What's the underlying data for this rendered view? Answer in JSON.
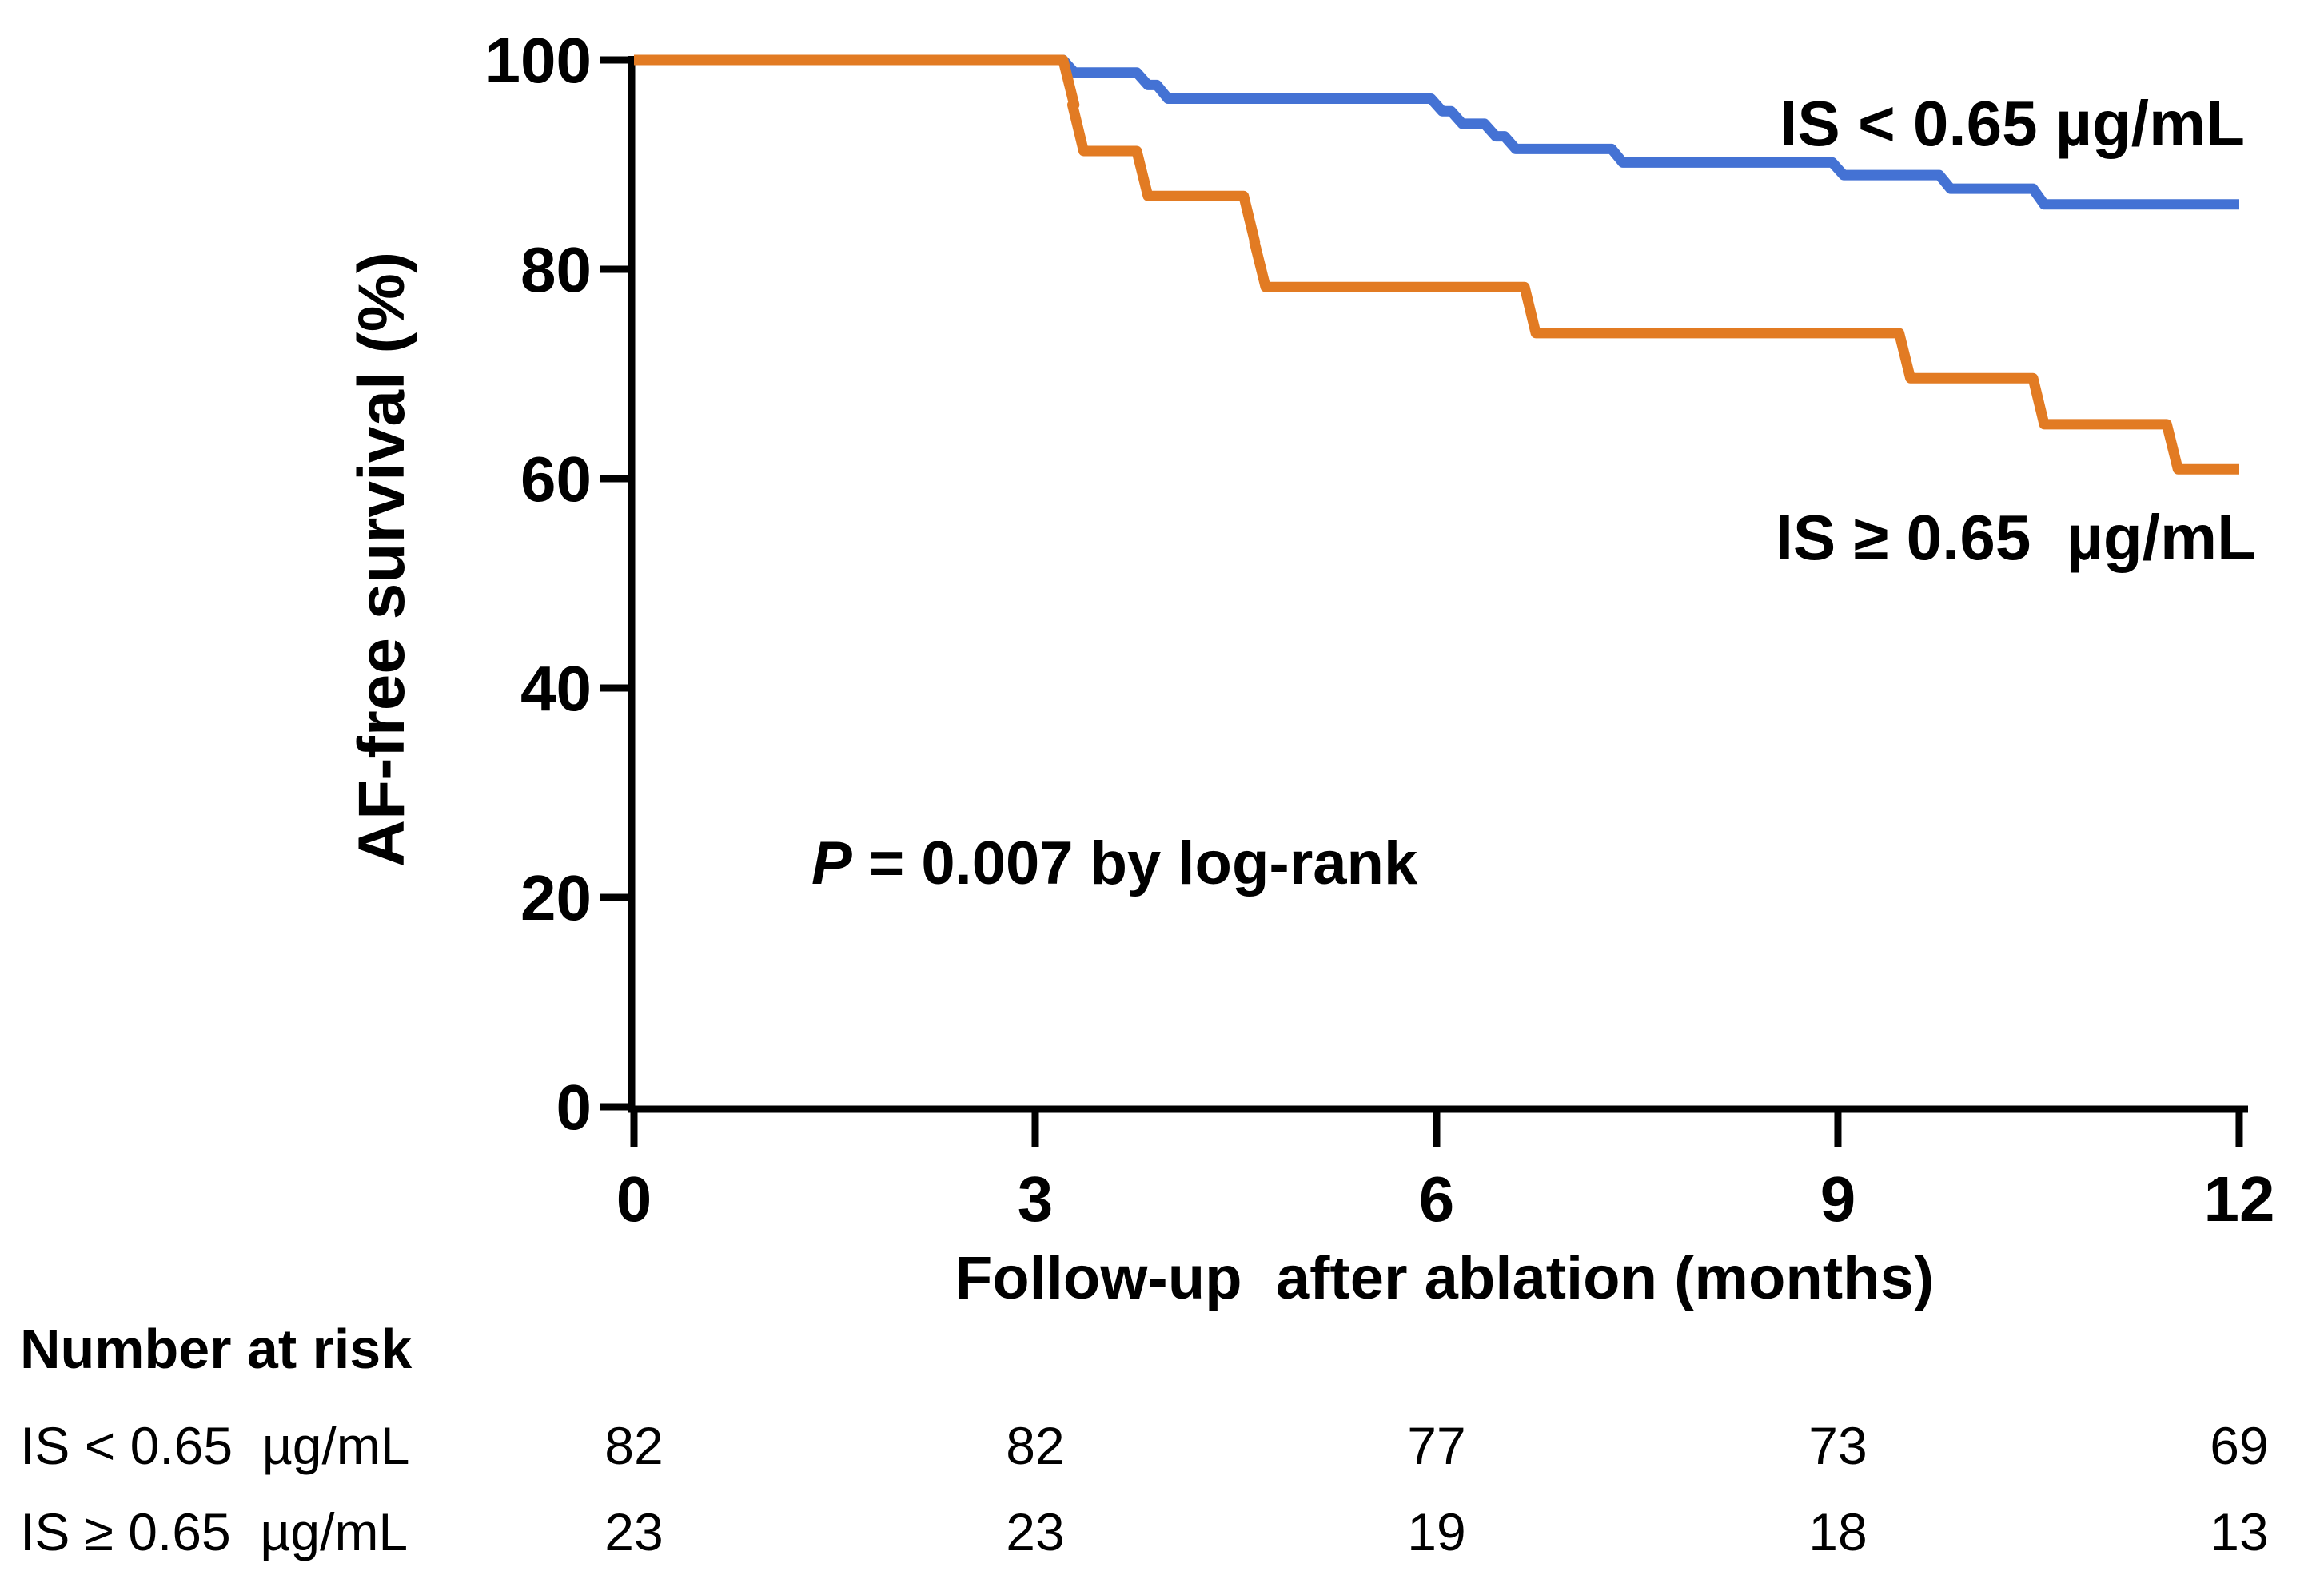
{
  "chart_data": {
    "type": "line",
    "subtype": "kaplan-meier-step",
    "title": "",
    "xlabel": "Follow-up  after ablation (months)",
    "ylabel": "AF-free survival (%)",
    "xlim": [
      0,
      12
    ],
    "ylim": [
      0,
      100
    ],
    "xticks": [
      0,
      3,
      6,
      9,
      12
    ],
    "yticks": [
      0,
      20,
      40,
      60,
      80,
      100
    ],
    "grid": false,
    "legend_position": "inline-right",
    "annotation": {
      "p_prefix": "P",
      "p_rest": " = 0.007 by log-rank"
    },
    "series": [
      {
        "name": "IS < 0.65 µg/mL",
        "line_color": "#4472D4",
        "label_color": "#3A618E",
        "steps": [
          [
            0,
            100
          ],
          [
            3.25,
            98.8
          ],
          [
            3.8,
            97.6
          ],
          [
            3.95,
            96.3
          ],
          [
            6.0,
            95.1
          ],
          [
            6.15,
            93.9
          ],
          [
            6.4,
            92.7
          ],
          [
            6.55,
            91.5
          ],
          [
            7.35,
            90.2
          ],
          [
            9.0,
            89.0
          ],
          [
            9.8,
            87.7
          ],
          [
            10.5,
            86.2
          ],
          [
            12,
            86.2
          ]
        ]
      },
      {
        "name": "IS ≥ 0.65  µg/mL",
        "line_color": "#E27B23",
        "label_color": "#E27B23",
        "steps": [
          [
            0,
            100
          ],
          [
            3.25,
            95.7
          ],
          [
            3.32,
            91.3
          ],
          [
            3.8,
            87.0
          ],
          [
            4.6,
            82.6
          ],
          [
            4.68,
            78.3
          ],
          [
            6.7,
            73.9
          ],
          [
            9.5,
            69.6
          ],
          [
            10.5,
            65.2
          ],
          [
            11.5,
            60.9
          ],
          [
            12,
            60.9
          ]
        ]
      }
    ]
  },
  "risk_table": {
    "title": "Number at risk",
    "columns": [
      0,
      3,
      6,
      9,
      12
    ],
    "rows": [
      {
        "label": "IS < 0.65  µg/mL",
        "counts": [
          82,
          82,
          77,
          73,
          69
        ]
      },
      {
        "label": "IS ≥ 0.65  µg/mL",
        "counts": [
          23,
          23,
          19,
          18,
          13
        ]
      }
    ]
  }
}
